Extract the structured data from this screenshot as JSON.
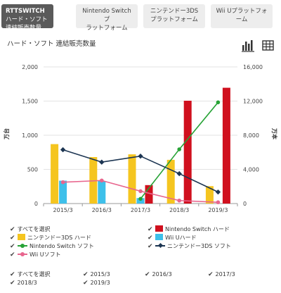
{
  "tabs": [
    {
      "label": "RTTSWITCH",
      "sub": "ハード・ソフト 連結販売数量",
      "active": true
    },
    {
      "label": "Nintendo Switch プ",
      "sub": "ラットフォーム",
      "active": false
    },
    {
      "label": "ニンテンドー3DS",
      "sub": "プラットフォーム",
      "active": false
    },
    {
      "label": "Wii Uプラットフォ",
      "sub": "ーム",
      "active": false
    }
  ],
  "chart_title": "ハード・ソフト 連結販売数量",
  "view_icons": [
    "bar-chart-icon",
    "table-icon"
  ],
  "chart_data": {
    "type": "bar",
    "categories": [
      "2015/3",
      "2016/3",
      "2017/3",
      "2018/3",
      "2019/3"
    ],
    "left_axis": {
      "label": "万台",
      "range": [
        0,
        2000
      ],
      "ticks": [
        "0",
        "500",
        "1,000",
        "1,500",
        "2,000"
      ]
    },
    "right_axis": {
      "label": "万本",
      "range": [
        0,
        16000
      ],
      "ticks": [
        "0",
        "4,000",
        "8,000",
        "12,000",
        "16,000"
      ]
    },
    "series": [
      {
        "name": "Nintendo Switch ハード",
        "kind": "bar",
        "axis": "left",
        "color": "#d0101e",
        "values": [
          null,
          null,
          270,
          1505,
          1695
        ]
      },
      {
        "name": "ニンテンドー3DS ハード",
        "kind": "bar",
        "axis": "left",
        "color": "#f5c51f",
        "values": [
          870,
          680,
          720,
          640,
          255
        ]
      },
      {
        "name": "Wii Uハード",
        "kind": "bar",
        "axis": "left",
        "color": "#3ec0ea",
        "values": [
          335,
          330,
          80,
          null,
          null
        ]
      },
      {
        "name": "Nintendo Switch ソフト",
        "kind": "line",
        "axis": "right",
        "color": "#27a336",
        "marker": "circle",
        "values": [
          null,
          null,
          550,
          6350,
          11850
        ]
      },
      {
        "name": "ニンテンドー3DS ソフト",
        "kind": "line",
        "axis": "right",
        "color": "#1c3552",
        "marker": "diamond",
        "values": [
          6300,
          4850,
          5550,
          3500,
          1350
        ]
      },
      {
        "name": "Wii Uソフト",
        "kind": "line",
        "axis": "right",
        "color": "#e8668e",
        "marker": "circle",
        "values": [
          2500,
          2700,
          1450,
          350,
          150
        ]
      }
    ],
    "grid": true,
    "legend_position": "bottom"
  },
  "legend": {
    "select_all": "すべてを選択",
    "items": [
      {
        "label": "Nintendo Switch ハード",
        "color": "#d0101e",
        "kind": "bar"
      },
      {
        "label": "ニンテンドー3DS ハード",
        "color": "#f5c51f",
        "kind": "bar"
      },
      {
        "label": "Wii Uハード",
        "color": "#3ec0ea",
        "kind": "bar"
      },
      {
        "label": "Nintendo Switch ソフト",
        "color": "#27a336",
        "kind": "line-circle"
      },
      {
        "label": "ニンテンドー3DS ソフト",
        "color": "#1c3552",
        "kind": "line-diamond"
      },
      {
        "label": "Wii Uソフト",
        "color": "#e8668e",
        "kind": "line-circle"
      }
    ]
  },
  "year_filter": {
    "select_all": "すべてを選択",
    "years": [
      "2015/3",
      "2016/3",
      "2017/3",
      "2018/3",
      "2019/3"
    ]
  }
}
